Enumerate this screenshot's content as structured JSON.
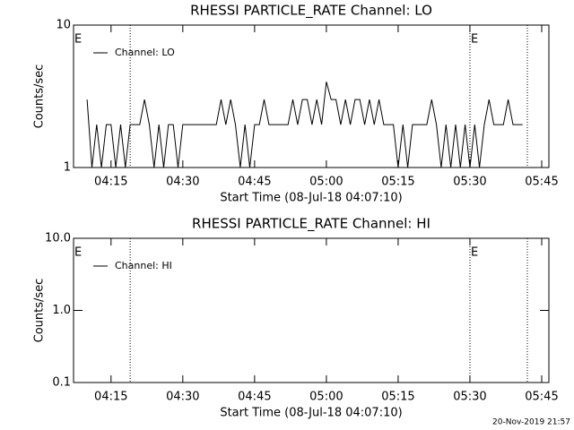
{
  "chart_data": [
    {
      "type": "line",
      "title": "RHESSI PARTICLE_RATE Channel: LO",
      "x_label": "Start Time (08-Jul-18 04:07:10)",
      "y_label": "Counts/sec",
      "log_y": true,
      "ylim": [
        1,
        10
      ],
      "yticks": [
        1,
        10
      ],
      "xlim": [
        "04:07:10",
        "05:46:30"
      ],
      "xticks": [
        "04:15",
        "04:30",
        "04:45",
        "05:00",
        "05:15",
        "05:30",
        "05:45"
      ],
      "vlines": [
        "04:19",
        "05:30",
        "05:42"
      ],
      "annotations": [
        {
          "text": "E",
          "x": "04:07:10"
        },
        {
          "text": "E",
          "x": "05:30"
        }
      ],
      "x": [
        "04:10",
        "04:11",
        "04:12",
        "04:13",
        "04:14",
        "04:15",
        "04:16",
        "04:17",
        "04:18",
        "04:19",
        "04:20",
        "04:21",
        "04:22",
        "04:23",
        "04:24",
        "04:25",
        "04:26",
        "04:27",
        "04:28",
        "04:29",
        "04:30",
        "04:31",
        "04:32",
        "04:33",
        "04:34",
        "04:35",
        "04:36",
        "04:37",
        "04:38",
        "04:39",
        "04:40",
        "04:41",
        "04:42",
        "04:43",
        "04:44",
        "04:45",
        "04:46",
        "04:47",
        "04:48",
        "04:49",
        "04:50",
        "04:51",
        "04:52",
        "04:53",
        "04:54",
        "04:55",
        "04:56",
        "04:57",
        "04:58",
        "04:59",
        "05:00",
        "05:01",
        "05:02",
        "05:03",
        "05:04",
        "05:05",
        "05:06",
        "05:07",
        "05:08",
        "05:09",
        "05:10",
        "05:11",
        "05:12",
        "05:13",
        "05:14",
        "05:15",
        "05:16",
        "05:17",
        "05:18",
        "05:19",
        "05:20",
        "05:21",
        "05:22",
        "05:23",
        "05:24",
        "05:25",
        "05:26",
        "05:27",
        "05:28",
        "05:29",
        "05:30",
        "05:31",
        "05:32",
        "05:33",
        "05:34",
        "05:35",
        "05:36",
        "05:37",
        "05:38",
        "05:39",
        "05:40",
        "05:41"
      ],
      "series": [
        {
          "name": "Channel: LO",
          "color": "#000000",
          "values": [
            3,
            1,
            2,
            1,
            2,
            2,
            1,
            2,
            1,
            2,
            2,
            2,
            3,
            2,
            1,
            2,
            1,
            2,
            2,
            1,
            2,
            2,
            2,
            2,
            2,
            2,
            2,
            2,
            3,
            2,
            3,
            2,
            1,
            2,
            1,
            2,
            2,
            3,
            2,
            2,
            2,
            2,
            2,
            3,
            2,
            3,
            3,
            2,
            3,
            2,
            4,
            3,
            3,
            2,
            3,
            2,
            3,
            3,
            2,
            3,
            2,
            3,
            2,
            2,
            2,
            1,
            2,
            1,
            2,
            2,
            2,
            2,
            3,
            2,
            1,
            2,
            1,
            2,
            1,
            2,
            1,
            2,
            1,
            2,
            3,
            2,
            2,
            2,
            3,
            2,
            2,
            2
          ]
        }
      ]
    },
    {
      "type": "line",
      "title": "RHESSI PARTICLE_RATE Channel: HI",
      "x_label": "Start Time (08-Jul-18 04:07:10)",
      "y_label": "Counts/sec",
      "log_y": true,
      "ylim": [
        0.1,
        10
      ],
      "yticks": [
        0.1,
        {
          "value": 1,
          "label": "1.0"
        },
        {
          "value": 10,
          "label": "10.0"
        }
      ],
      "xlim": [
        "04:07:10",
        "05:46:30"
      ],
      "xticks": [
        "04:15",
        "04:30",
        "04:45",
        "05:00",
        "05:15",
        "05:30",
        "05:45"
      ],
      "vlines": [
        "04:19",
        "05:30",
        "05:42"
      ],
      "annotations": [
        {
          "text": "E",
          "x": "04:07:10"
        },
        {
          "text": "E",
          "x": "05:30"
        }
      ],
      "x": [],
      "series": [
        {
          "name": "Channel: HI",
          "color": "#000000",
          "values": []
        }
      ]
    }
  ],
  "footer": "20-Nov-2019 21:57"
}
